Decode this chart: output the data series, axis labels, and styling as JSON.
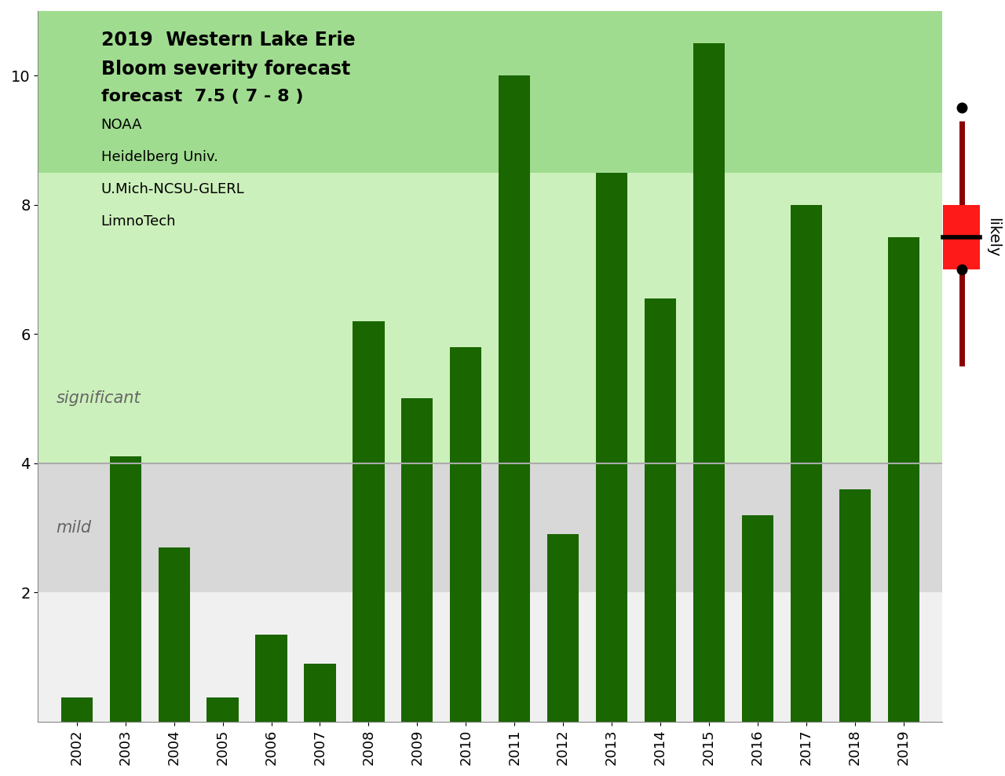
{
  "years": [
    2002,
    2003,
    2004,
    2005,
    2006,
    2007,
    2008,
    2009,
    2010,
    2011,
    2012,
    2013,
    2014,
    2015,
    2016,
    2017,
    2018,
    2019
  ],
  "values": [
    0.37,
    4.1,
    2.7,
    0.37,
    1.35,
    0.9,
    6.2,
    5.0,
    5.8,
    10.0,
    2.9,
    8.5,
    6.55,
    10.5,
    3.2,
    8.0,
    3.6,
    7.5
  ],
  "bar_color": "#1a6600",
  "ylim": [
    0,
    11
  ],
  "mild_threshold": 4.0,
  "title_line1": "2019  Western Lake Erie",
  "title_line2": "Bloom severity forecast",
  "title_line3": "forecast  7.5 ( 7 - 8 )",
  "subtitle_lines": [
    "NOAA",
    "Heidelberg Univ.",
    "U.Mich-NCSU-GLERL",
    "LimnoTech"
  ],
  "mild_label": "mild",
  "sig_label": "significant",
  "likely_label": "likely",
  "bg_white": "#ffffff",
  "bg_gray_light": "#e8e8e8",
  "bg_gray": "#d0d0d0",
  "bg_green_light": "#d8f5cc",
  "bg_green_medium": "#b8edaa",
  "bg_green_dark": "#90de80",
  "boxplot_2019": {
    "median": 7.5,
    "q1": 7.0,
    "q3": 8.0,
    "whisker_low": 5.5,
    "whisker_high": 9.3,
    "outlier_high": 9.5,
    "outlier_low": 7.0,
    "box_color": "#ff1a1a",
    "whisker_color": "#8b0000",
    "median_color": "#000000",
    "dot_color": "#000000"
  }
}
